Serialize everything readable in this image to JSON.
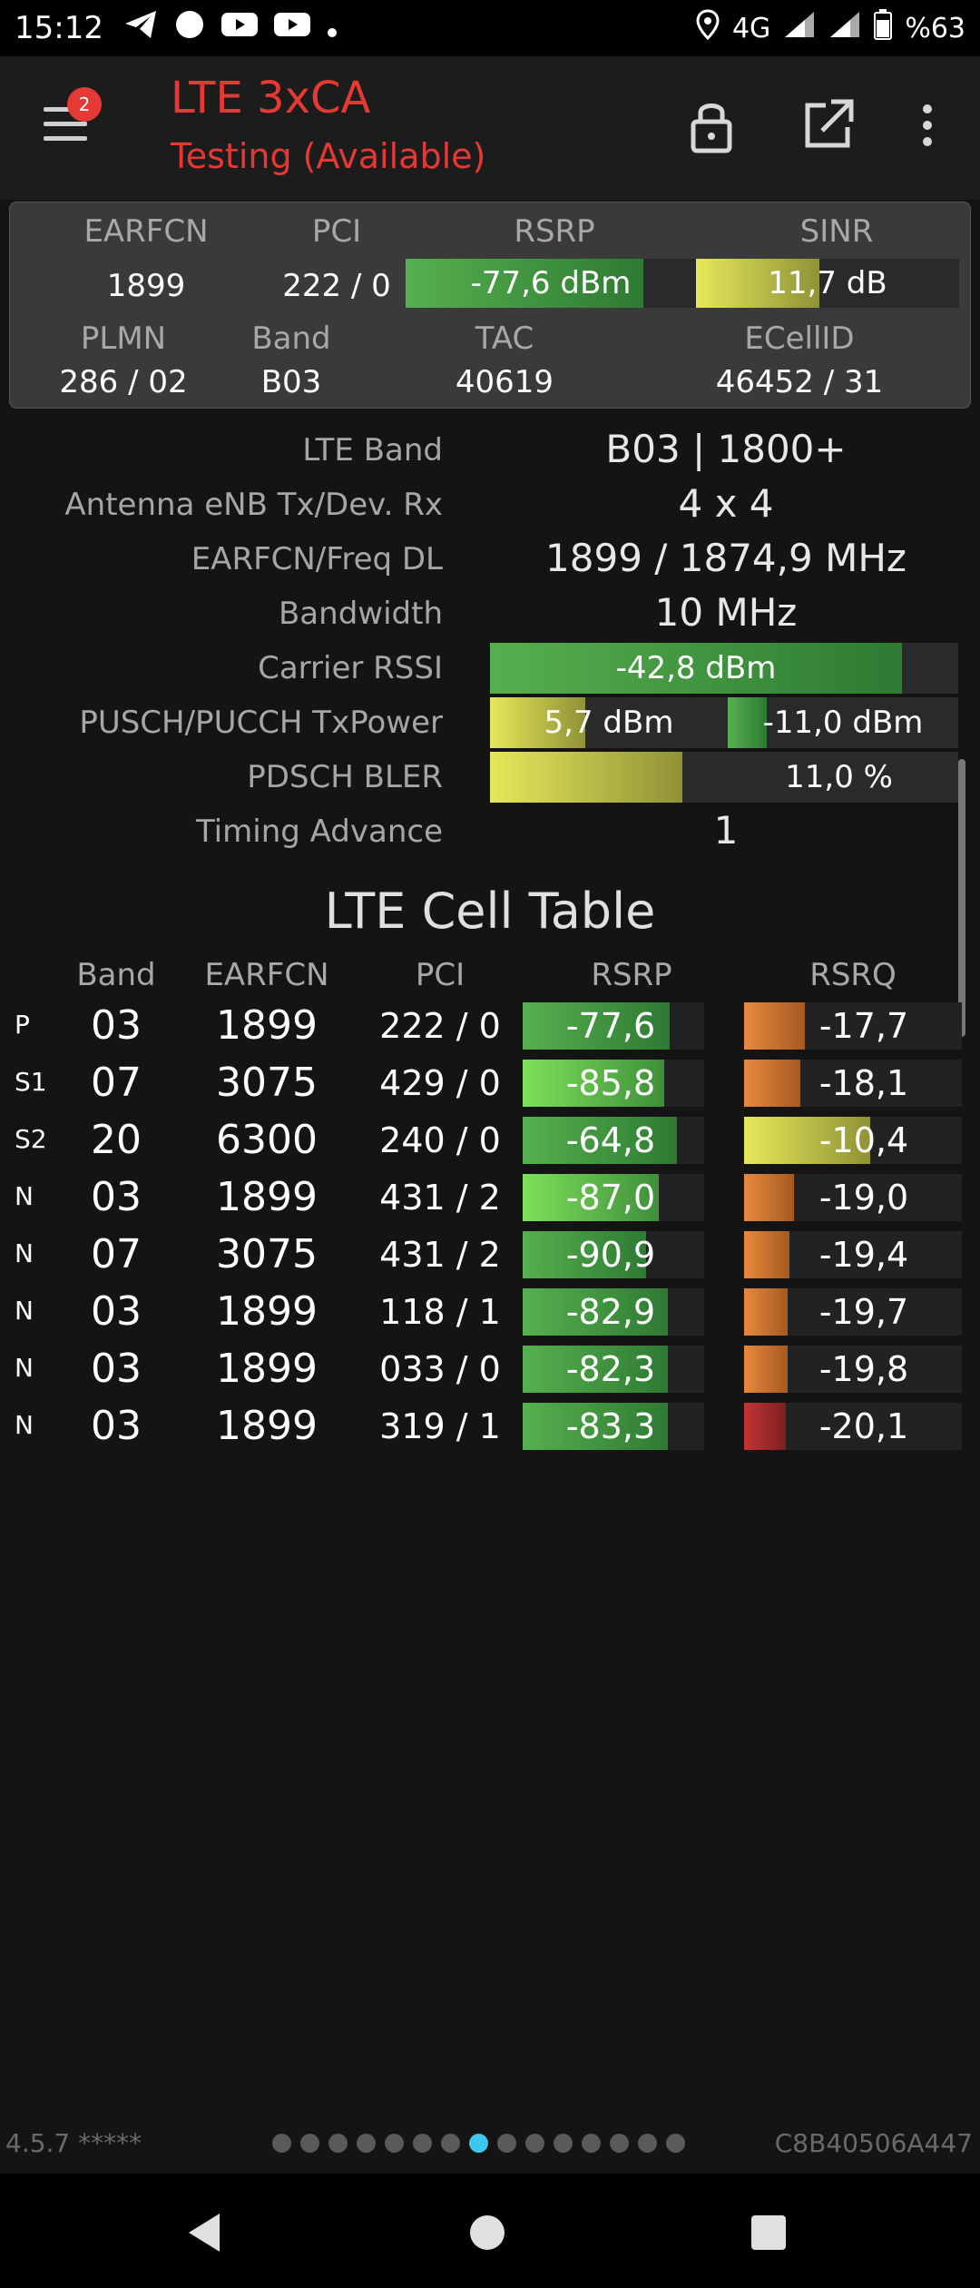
{
  "status_bar": {
    "time": "15:12",
    "network": "4G",
    "battery": "%63",
    "icons": [
      "telegram-icon",
      "circle-notification-icon",
      "youtube-icon",
      "youtube-icon",
      "dot-icon",
      "location-icon",
      "signal-icon",
      "signal-icon",
      "battery-icon"
    ]
  },
  "header": {
    "title": "LTE 3xCA",
    "subtitle": "Testing (Available)",
    "badge_count": "2",
    "colors": {
      "title": "#e53935"
    }
  },
  "summary": {
    "headers_top": [
      "EARFCN",
      "PCI",
      "RSRP",
      "SINR"
    ],
    "earfcn": "1899",
    "pci": "222 / 0",
    "rsrp": "-77,6 dBm",
    "rsrp_level": 0.82,
    "sinr": "11,7 dB",
    "sinr_level": 0.47,
    "headers_bottom": [
      "PLMN",
      "Band",
      "TAC",
      "ECellID"
    ],
    "plmn": "286 / 02",
    "band": "B03",
    "tac": "40619",
    "ecellid": "46452 / 31"
  },
  "details": [
    {
      "label": "LTE Band",
      "value": "B03 | 1800+"
    },
    {
      "label": "Antenna eNB Tx/Dev. Rx",
      "value": "4 x 4"
    },
    {
      "label": "EARFCN/Freq DL",
      "value": "1899 / 1874,9 MHz"
    },
    {
      "label": "Bandwidth",
      "value": "10 MHz"
    },
    {
      "label": "Carrier RSSI",
      "value": "-42,8 dBm",
      "level": 0.88
    },
    {
      "label": "PUSCH/PUCCH TxPower",
      "value": "5,7 dBm",
      "level": 0.4,
      "value2": "-11,0 dBm",
      "level2": 0.17
    },
    {
      "label": "PDSCH BLER",
      "value": "11,0 %",
      "level": 0.41
    },
    {
      "label": "Timing Advance",
      "value": "1"
    }
  ],
  "cell_table": {
    "title": "LTE Cell Table",
    "columns": [
      "Band",
      "EARFCN",
      "PCI",
      "RSRP",
      "RSRQ"
    ],
    "rows": [
      {
        "type": "P",
        "band": "03",
        "earfcn": "1899",
        "pci": "222 / 0",
        "rsrp": "-77,6",
        "rsrp_level": 0.81,
        "rsrq": "-17,7",
        "rsrq_level": 0.28,
        "rsrq_color": "orange"
      },
      {
        "type": "S1",
        "band": "07",
        "earfcn": "3075",
        "pci": "429 / 0",
        "rsrp": "-85,8",
        "rsrp_level": 0.78,
        "rsrq": "-18,1",
        "rsrq_level": 0.26,
        "rsrq_color": "orange"
      },
      {
        "type": "S2",
        "band": "20",
        "earfcn": "6300",
        "pci": "240 / 0",
        "rsrp": "-64,8",
        "rsrp_level": 0.85,
        "rsrq": "-10,4",
        "rsrq_level": 0.58,
        "rsrq_color": "yellow"
      },
      {
        "type": "N",
        "band": "03",
        "earfcn": "1899",
        "pci": "431 / 2",
        "rsrp": "-87,0",
        "rsrp_level": 0.75,
        "rsrq": "-19,0",
        "rsrq_level": 0.23,
        "rsrq_color": "orange"
      },
      {
        "type": "N",
        "band": "07",
        "earfcn": "3075",
        "pci": "431 / 2",
        "rsrp": "-90,9",
        "rsrp_level": 0.68,
        "rsrq": "-19,4",
        "rsrq_level": 0.21,
        "rsrq_color": "orange"
      },
      {
        "type": "N",
        "band": "03",
        "earfcn": "1899",
        "pci": "118 / 1",
        "rsrp": "-82,9",
        "rsrp_level": 0.8,
        "rsrq": "-19,7",
        "rsrq_level": 0.2,
        "rsrq_color": "orange"
      },
      {
        "type": "N",
        "band": "03",
        "earfcn": "1899",
        "pci": "033 / 0",
        "rsrp": "-82,3",
        "rsrp_level": 0.8,
        "rsrq": "-19,8",
        "rsrq_level": 0.2,
        "rsrq_color": "orange"
      },
      {
        "type": "N",
        "band": "03",
        "earfcn": "1899",
        "pci": "319 / 1",
        "rsrp": "-83,3",
        "rsrp_level": 0.8,
        "rsrq": "-20,1",
        "rsrq_level": 0.19,
        "rsrq_color": "red"
      }
    ]
  },
  "footer": {
    "version": "4.5.7 *****",
    "device_id": "C8B40506A447",
    "page_count": 15,
    "active_page": 8
  }
}
